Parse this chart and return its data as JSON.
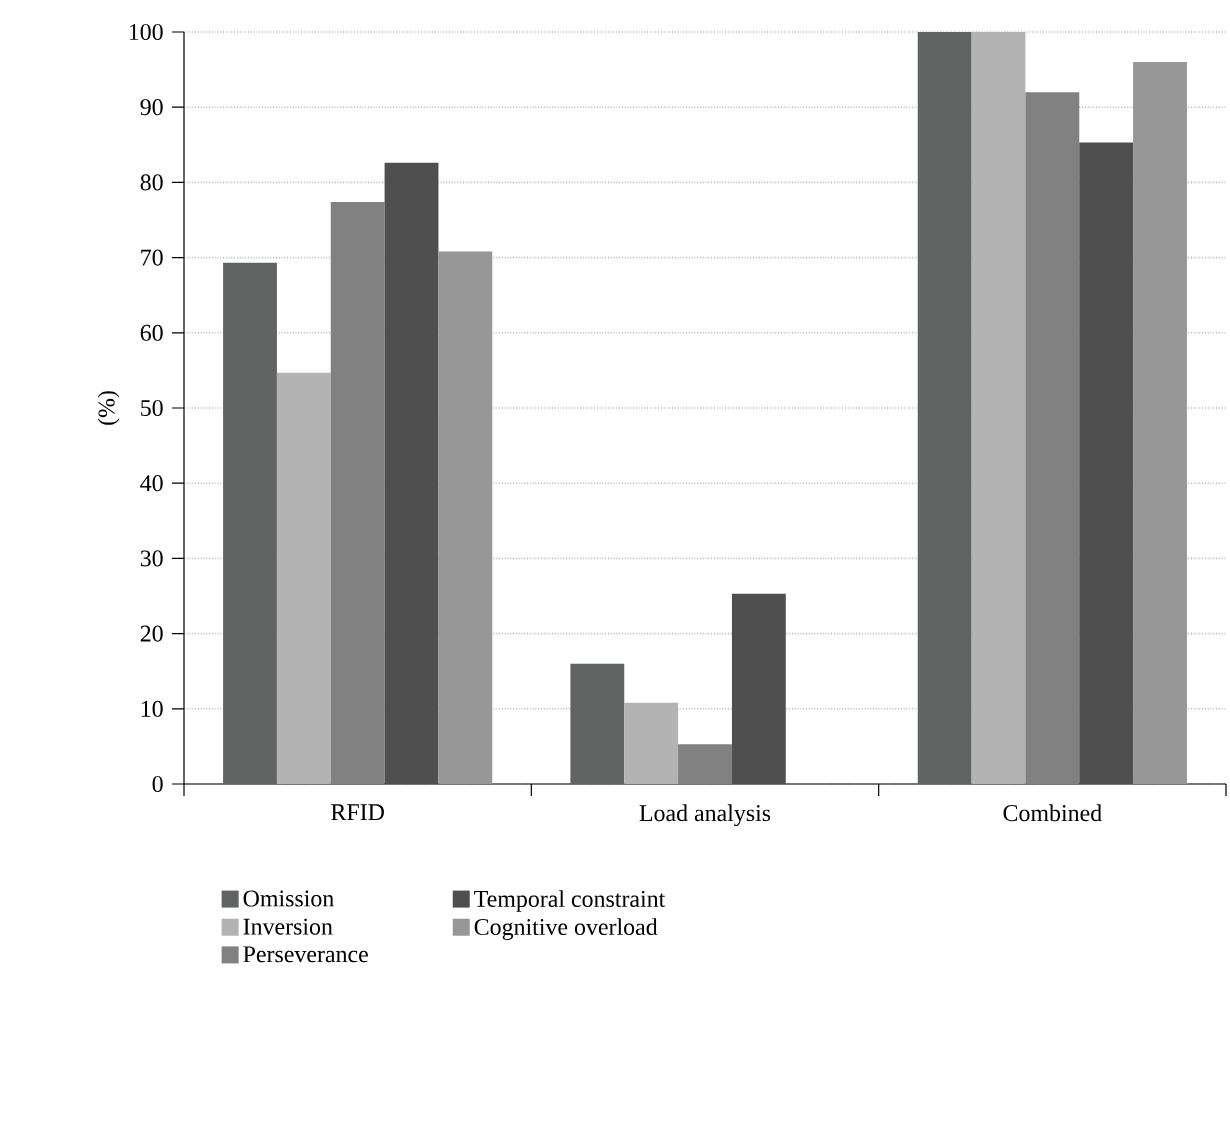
{
  "chart_data": {
    "type": "bar",
    "ylabel": "(%)",
    "categories": [
      "RFID",
      "Load analysis",
      "Combined"
    ],
    "series": [
      {
        "name": "Omission",
        "color": "#616362",
        "values": [
          69.3,
          16.0,
          100
        ]
      },
      {
        "name": "Inversion",
        "color": "#b3b3b3",
        "values": [
          54.7,
          10.8,
          100
        ]
      },
      {
        "name": "Perseverance",
        "color": "#818181",
        "values": [
          77.4,
          5.3,
          92.0
        ]
      },
      {
        "name": "Temporal constraint",
        "color": "#4f4f4f",
        "values": [
          82.6,
          25.3,
          85.3
        ]
      },
      {
        "name": "Cognitive overload",
        "color": "#979797",
        "values": [
          70.8,
          null,
          96.0
        ]
      }
    ],
    "ylim": [
      0,
      100
    ],
    "yticks": [
      0,
      10,
      20,
      30,
      40,
      50,
      60,
      70,
      80,
      90,
      100
    ],
    "grid": "y",
    "legend": "bottom"
  }
}
